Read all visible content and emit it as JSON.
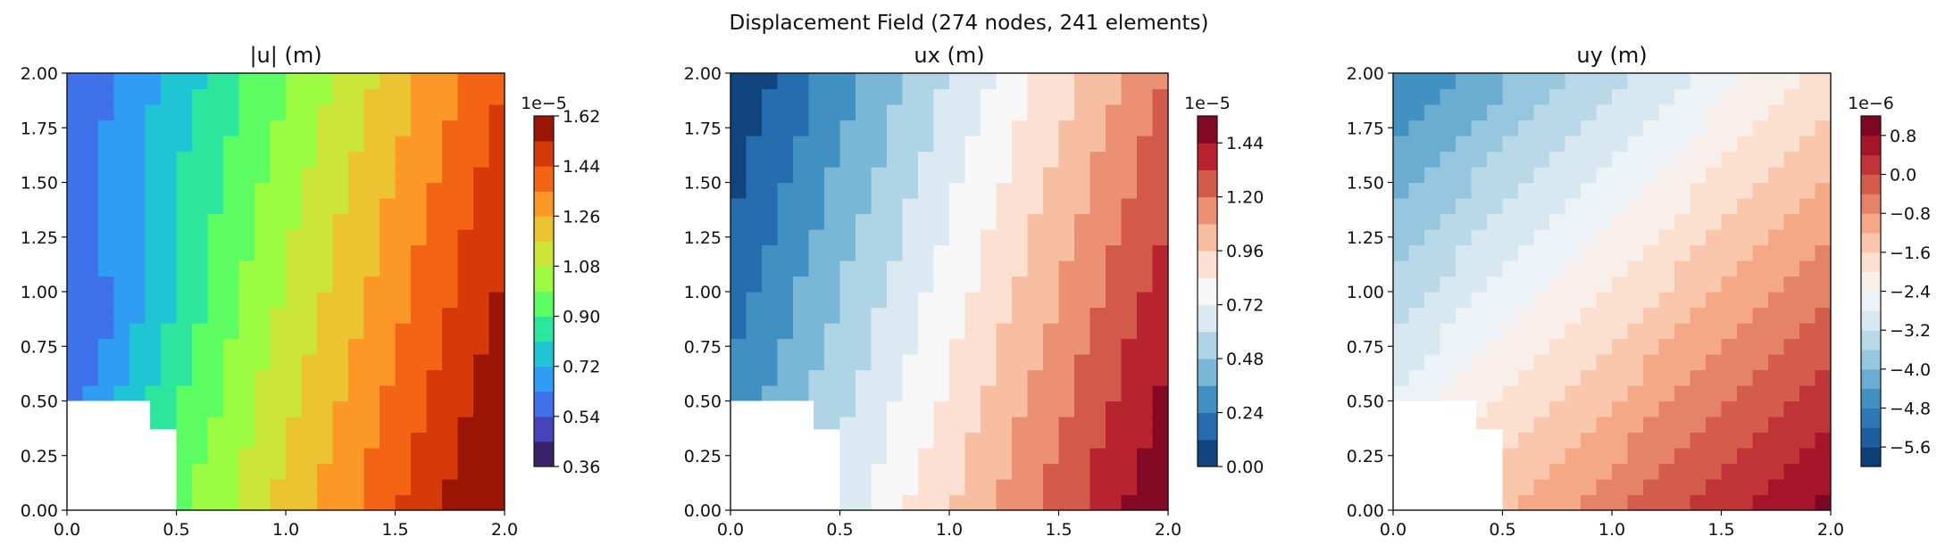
{
  "figure": {
    "suptitle": "Displacement Field (274 nodes, 241 elements)"
  },
  "chart_data": [
    {
      "type": "heatmap",
      "title": "|u| (m)",
      "xlabel": "",
      "ylabel": "",
      "xlim": [
        0.0,
        2.0
      ],
      "ylim": [
        0.0,
        2.0
      ],
      "x_ticks": [
        "0.0",
        "0.5",
        "1.0",
        "1.5",
        "2.0"
      ],
      "y_ticks": [
        "0.00",
        "0.25",
        "0.50",
        "0.75",
        "1.00",
        "1.25",
        "1.50",
        "1.75",
        "2.00"
      ],
      "colormap": "turbo",
      "colorbar": {
        "exponent": "1e−5",
        "range": [
          0.36,
          1.62
        ],
        "levels": 14,
        "ticks": [
          0.36,
          0.54,
          0.72,
          0.9,
          1.08,
          1.26,
          1.44,
          1.62
        ],
        "tick_labels": [
          "0.36",
          "0.54",
          "0.72",
          "0.90",
          "1.08",
          "1.26",
          "1.44",
          "1.62"
        ]
      },
      "field": {
        "corner": 0.74,
        "weight_x": 0.48,
        "weight_y": 0.2,
        "base": 0.47,
        "scale": 1.13,
        "dip": 0.12
      },
      "cutout_visible": true
    },
    {
      "type": "heatmap",
      "title": "ux (m)",
      "xlabel": "",
      "ylabel": "",
      "xlim": [
        0.0,
        2.0
      ],
      "ylim": [
        0.0,
        2.0
      ],
      "x_ticks": [
        "0.0",
        "0.5",
        "1.0",
        "1.5",
        "2.0"
      ],
      "y_ticks": [
        "0.00",
        "0.25",
        "0.50",
        "0.75",
        "1.00",
        "1.25",
        "1.50",
        "1.75",
        "2.00"
      ],
      "colormap": "RdBu_r",
      "colorbar": {
        "exponent": "1e−5",
        "range": [
          0.0,
          1.56
        ],
        "levels": 13,
        "ticks": [
          0.0,
          0.24,
          0.48,
          0.72,
          0.96,
          1.2,
          1.44
        ],
        "tick_labels": [
          "0.00",
          "0.24",
          "0.48",
          "0.72",
          "0.96",
          "1.20",
          "1.44"
        ]
      },
      "field": {
        "corner": 0.0,
        "weight_x": 0.5,
        "weight_y": 0.0,
        "base": 0.0,
        "scale": 1.56,
        "dip": 0.0
      },
      "cutout_visible": true
    },
    {
      "type": "heatmap",
      "title": "uy (m)",
      "xlabel": "",
      "ylabel": "",
      "xlim": [
        0.0,
        2.0
      ],
      "ylim": [
        0.0,
        2.0
      ],
      "x_ticks": [
        "0.0",
        "0.5",
        "1.0",
        "1.5",
        "2.0"
      ],
      "y_ticks": [
        "0.00",
        "0.25",
        "0.50",
        "0.75",
        "1.00",
        "1.25",
        "1.50",
        "1.75",
        "2.00"
      ],
      "colormap": "RdBu_r",
      "colorbar": {
        "exponent": "1e−6",
        "range": [
          -6.0,
          1.2
        ],
        "levels": 18,
        "ticks": [
          -5.6,
          -4.8,
          -4.0,
          -3.2,
          -2.4,
          -1.6,
          -0.8,
          0.0,
          0.8
        ],
        "tick_labels": [
          "−5.6",
          "−4.8",
          "−4.0",
          "−3.2",
          "−2.4",
          "−1.6",
          "−0.8",
          "0.0",
          "0.8"
        ]
      },
      "field": {
        "corner": 0.0,
        "weight_x": 0.5,
        "weight_y": -0.5,
        "base": -2.0,
        "scale": 3.0,
        "dip": 0.0
      },
      "cutout_visible": true
    }
  ]
}
